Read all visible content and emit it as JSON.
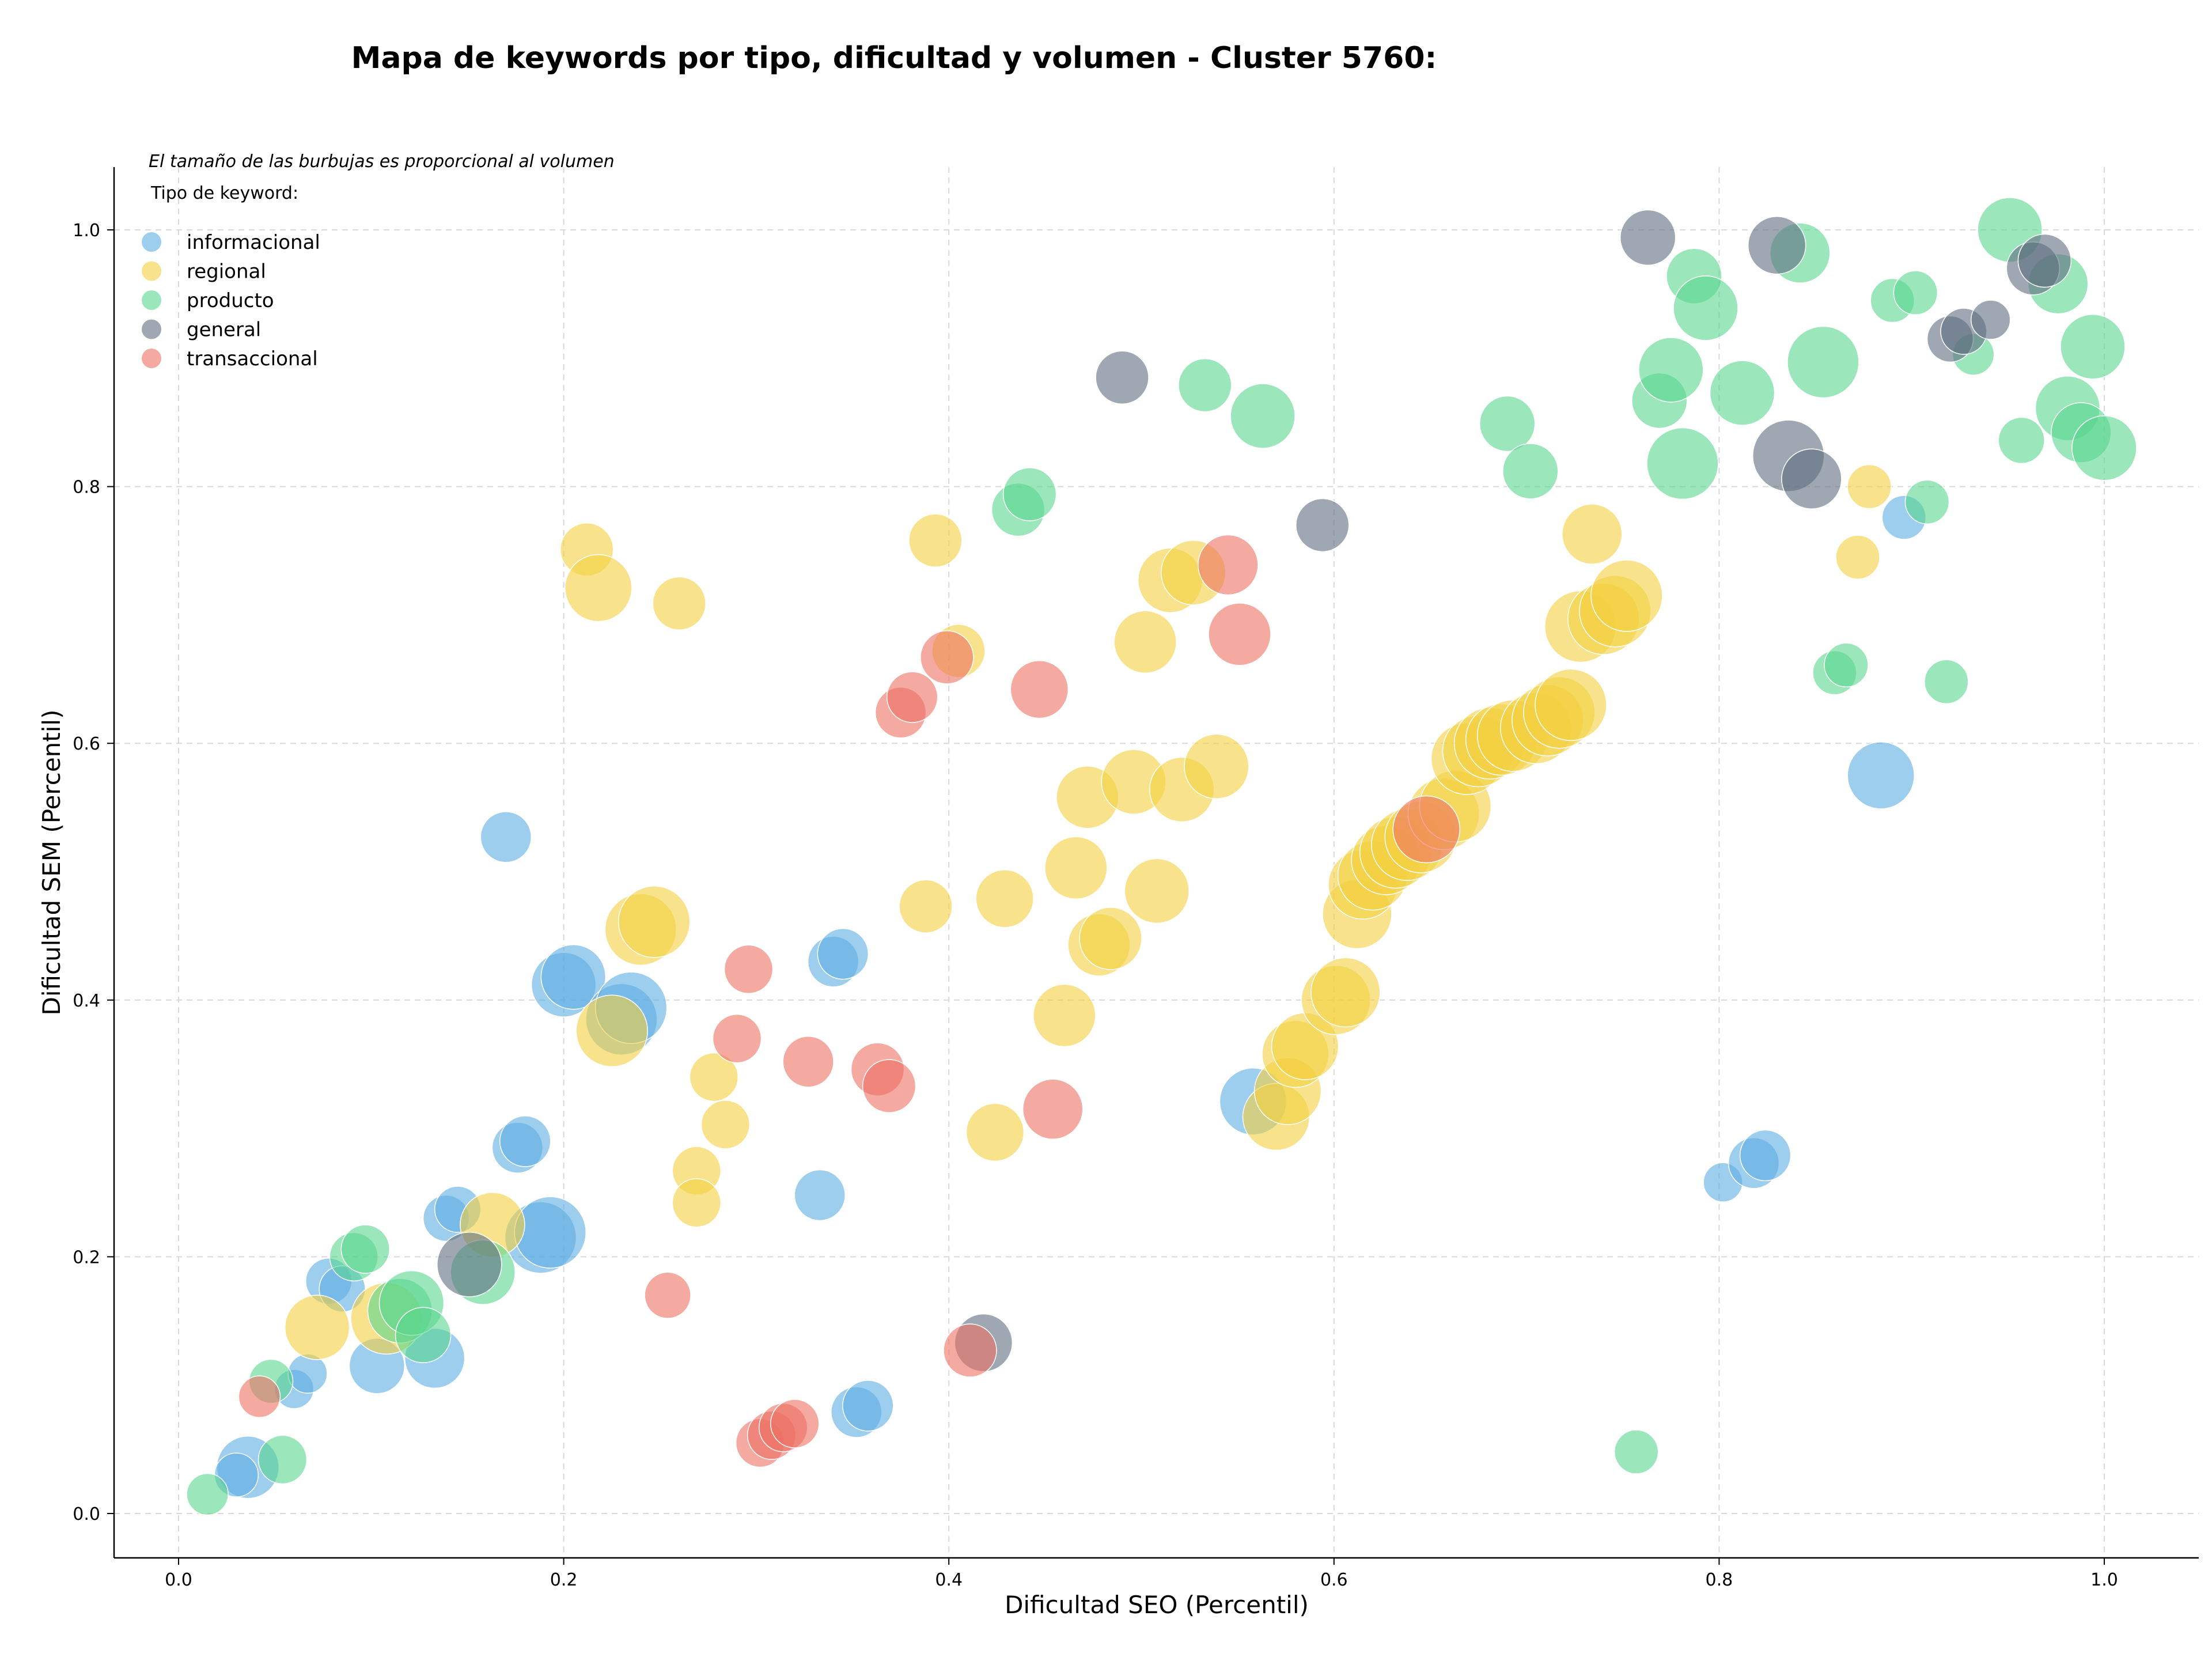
{
  "chart_data": {
    "type": "scatter",
    "title": "Mapa de keywords por tipo, dificultad y volumen - Cluster 5760:",
    "xlabel": "Dificultad SEO (Percentil)",
    "ylabel": "Dificultad SEM (Percentil)",
    "xlim": [
      -0.034,
      1.048
    ],
    "ylim": [
      -0.034,
      1.05
    ],
    "xticks": [
      0.0,
      0.2,
      0.4,
      0.6,
      0.8,
      1.0
    ],
    "yticks": [
      0.0,
      0.2,
      0.4,
      0.6,
      0.8,
      1.0
    ],
    "xtick_labels": [
      "0.0",
      "0.2",
      "0.4",
      "0.6",
      "0.8",
      "1.0"
    ],
    "ytick_labels": [
      "0.0",
      "0.2",
      "0.4",
      "0.6",
      "0.8",
      "1.0"
    ],
    "grid": true,
    "legend_position": "top-left",
    "size_note": "El tamaño de las burbujas es proporcional al volumen",
    "legend_title": "Tipo de keyword:",
    "series": [
      {
        "name": "informacional",
        "color": "#5DADE2",
        "points": [
          [
            0.036,
            0.036,
            0.8
          ],
          [
            0.03,
            0.03,
            0.4
          ],
          [
            0.06,
            0.097,
            0.3
          ],
          [
            0.067,
            0.109,
            0.3
          ],
          [
            0.078,
            0.181,
            0.45
          ],
          [
            0.085,
            0.175,
            0.45
          ],
          [
            0.103,
            0.115,
            0.65
          ],
          [
            0.133,
            0.121,
            0.75
          ],
          [
            0.139,
            0.23,
            0.45
          ],
          [
            0.145,
            0.237,
            0.45
          ],
          [
            0.176,
            0.285,
            0.55
          ],
          [
            0.18,
            0.29,
            0.55
          ],
          [
            0.17,
            0.527,
            0.55
          ],
          [
            0.188,
            0.215,
            1.0
          ],
          [
            0.193,
            0.219,
            1.0
          ],
          [
            0.2,
            0.412,
            0.85
          ],
          [
            0.205,
            0.418,
            0.85
          ],
          [
            0.23,
            0.385,
            1.0
          ],
          [
            0.235,
            0.394,
            1.0
          ],
          [
            0.333,
            0.248,
            0.55
          ],
          [
            0.34,
            0.43,
            0.55
          ],
          [
            0.345,
            0.436,
            0.55
          ],
          [
            0.352,
            0.079,
            0.55
          ],
          [
            0.358,
            0.084,
            0.55
          ],
          [
            0.558,
            0.321,
            0.9
          ],
          [
            0.802,
            0.258,
            0.3
          ],
          [
            0.818,
            0.273,
            0.55
          ],
          [
            0.824,
            0.279,
            0.55
          ],
          [
            0.884,
            0.575,
            0.9
          ],
          [
            0.896,
            0.776,
            0.4
          ]
        ]
      },
      {
        "name": "regional",
        "color": "#F4D03F",
        "points": [
          [
            0.072,
            0.145,
            0.85
          ],
          [
            0.108,
            0.152,
            1.0
          ],
          [
            0.163,
            0.225,
            0.85
          ],
          [
            0.212,
            0.751,
            0.6
          ],
          [
            0.218,
            0.721,
            0.9
          ],
          [
            0.225,
            0.376,
            1.0
          ],
          [
            0.24,
            0.455,
            1.0
          ],
          [
            0.247,
            0.461,
            1.0
          ],
          [
            0.26,
            0.709,
            0.6
          ],
          [
            0.269,
            0.267,
            0.5
          ],
          [
            0.269,
            0.242,
            0.5
          ],
          [
            0.278,
            0.34,
            0.5
          ],
          [
            0.284,
            0.303,
            0.5
          ],
          [
            0.388,
            0.473,
            0.6
          ],
          [
            0.393,
            0.758,
            0.6
          ],
          [
            0.405,
            0.672,
            0.6
          ],
          [
            0.424,
            0.297,
            0.7
          ],
          [
            0.429,
            0.479,
            0.7
          ],
          [
            0.46,
            0.388,
            0.8
          ],
          [
            0.466,
            0.503,
            0.8
          ],
          [
            0.472,
            0.558,
            0.8
          ],
          [
            0.478,
            0.443,
            0.8
          ],
          [
            0.484,
            0.448,
            0.8
          ],
          [
            0.496,
            0.57,
            0.85
          ],
          [
            0.502,
            0.679,
            0.8
          ],
          [
            0.508,
            0.485,
            0.85
          ],
          [
            0.515,
            0.727,
            0.85
          ],
          [
            0.521,
            0.564,
            0.85
          ],
          [
            0.527,
            0.733,
            0.85
          ],
          [
            0.539,
            0.582,
            0.85
          ],
          [
            0.57,
            0.309,
            0.9
          ],
          [
            0.576,
            0.329,
            0.9
          ],
          [
            0.58,
            0.358,
            0.9
          ],
          [
            0.585,
            0.364,
            0.9
          ],
          [
            0.601,
            0.4,
            0.95
          ],
          [
            0.606,
            0.406,
            0.95
          ],
          [
            0.612,
            0.467,
            0.95
          ],
          [
            0.615,
            0.49,
            0.95
          ],
          [
            0.62,
            0.497,
            0.95
          ],
          [
            0.627,
            0.509,
            0.95
          ],
          [
            0.632,
            0.515,
            1.0
          ],
          [
            0.638,
            0.521,
            1.0
          ],
          [
            0.645,
            0.527,
            1.0
          ],
          [
            0.657,
            0.545,
            1.0
          ],
          [
            0.663,
            0.551,
            1.0
          ],
          [
            0.669,
            0.588,
            1.0
          ],
          [
            0.675,
            0.594,
            1.0
          ],
          [
            0.681,
            0.6,
            1.0
          ],
          [
            0.687,
            0.603,
            1.0
          ],
          [
            0.693,
            0.606,
            1.0
          ],
          [
            0.705,
            0.612,
            1.0
          ],
          [
            0.711,
            0.618,
            1.0
          ],
          [
            0.717,
            0.624,
            1.0
          ],
          [
            0.723,
            0.63,
            1.0
          ],
          [
            0.728,
            0.691,
            1.0
          ],
          [
            0.734,
            0.763,
            0.75
          ],
          [
            0.74,
            0.697,
            1.0
          ],
          [
            0.746,
            0.703,
            1.0
          ],
          [
            0.752,
            0.715,
            1.0
          ],
          [
            0.872,
            0.745,
            0.4
          ],
          [
            0.878,
            0.8,
            0.4
          ]
        ]
      },
      {
        "name": "producto",
        "color": "#58D68D",
        "points": [
          [
            0.015,
            0.015,
            0.35
          ],
          [
            0.048,
            0.103,
            0.4
          ],
          [
            0.054,
            0.042,
            0.5
          ],
          [
            0.091,
            0.2,
            0.5
          ],
          [
            0.097,
            0.206,
            0.5
          ],
          [
            0.115,
            0.158,
            0.85
          ],
          [
            0.121,
            0.164,
            0.85
          ],
          [
            0.127,
            0.139,
            0.65
          ],
          [
            0.158,
            0.188,
            0.85
          ],
          [
            0.436,
            0.782,
            0.6
          ],
          [
            0.442,
            0.794,
            0.6
          ],
          [
            0.533,
            0.879,
            0.6
          ],
          [
            0.563,
            0.855,
            0.85
          ],
          [
            0.69,
            0.849,
            0.65
          ],
          [
            0.702,
            0.812,
            0.65
          ],
          [
            0.757,
            0.048,
            0.4
          ],
          [
            0.769,
            0.867,
            0.65
          ],
          [
            0.775,
            0.891,
            0.85
          ],
          [
            0.781,
            0.818,
            1.0
          ],
          [
            0.787,
            0.964,
            0.65
          ],
          [
            0.793,
            0.939,
            0.85
          ],
          [
            0.812,
            0.873,
            0.85
          ],
          [
            0.842,
            0.982,
            0.75
          ],
          [
            0.854,
            0.897,
            1.0
          ],
          [
            0.86,
            0.655,
            0.4
          ],
          [
            0.866,
            0.661,
            0.4
          ],
          [
            0.89,
            0.945,
            0.4
          ],
          [
            0.902,
            0.951,
            0.4
          ],
          [
            0.908,
            0.788,
            0.4
          ],
          [
            0.918,
            0.648,
            0.4
          ],
          [
            0.932,
            0.903,
            0.35
          ],
          [
            0.957,
            0.836,
            0.45
          ],
          [
            0.951,
            1.0,
            0.85
          ],
          [
            0.976,
            0.958,
            0.75
          ],
          [
            0.981,
            0.861,
            0.85
          ],
          [
            0.988,
            0.842,
            0.75
          ],
          [
            0.994,
            0.909,
            0.85
          ],
          [
            1.0,
            0.83,
            0.85
          ]
        ]
      },
      {
        "name": "general",
        "color": "#5D6D7E",
        "points": [
          [
            0.151,
            0.194,
            0.85
          ],
          [
            0.418,
            0.133,
            0.7
          ],
          [
            0.49,
            0.885,
            0.6
          ],
          [
            0.594,
            0.77,
            0.6
          ],
          [
            0.763,
            0.994,
            0.65
          ],
          [
            0.83,
            0.988,
            0.7
          ],
          [
            0.836,
            0.824,
            1.0
          ],
          [
            0.848,
            0.806,
            0.75
          ],
          [
            0.92,
            0.915,
            0.45
          ],
          [
            0.927,
            0.921,
            0.45
          ],
          [
            0.941,
            0.93,
            0.3
          ],
          [
            0.963,
            0.97,
            0.6
          ],
          [
            0.969,
            0.976,
            0.6
          ]
        ]
      },
      {
        "name": "transaccional",
        "color": "#EC7063",
        "points": [
          [
            0.042,
            0.091,
            0.35
          ],
          [
            0.254,
            0.17,
            0.45
          ],
          [
            0.29,
            0.37,
            0.5
          ],
          [
            0.296,
            0.424,
            0.5
          ],
          [
            0.302,
            0.055,
            0.5
          ],
          [
            0.308,
            0.061,
            0.5
          ],
          [
            0.314,
            0.067,
            0.5
          ],
          [
            0.32,
            0.07,
            0.5
          ],
          [
            0.327,
            0.352,
            0.55
          ],
          [
            0.363,
            0.346,
            0.6
          ],
          [
            0.369,
            0.333,
            0.6
          ],
          [
            0.375,
            0.624,
            0.55
          ],
          [
            0.381,
            0.636,
            0.55
          ],
          [
            0.399,
            0.667,
            0.6
          ],
          [
            0.411,
            0.127,
            0.6
          ],
          [
            0.447,
            0.642,
            0.7
          ],
          [
            0.454,
            0.315,
            0.75
          ],
          [
            0.545,
            0.739,
            0.75
          ],
          [
            0.551,
            0.685,
            0.8
          ],
          [
            0.648,
            0.533,
            0.9
          ]
        ]
      }
    ]
  }
}
